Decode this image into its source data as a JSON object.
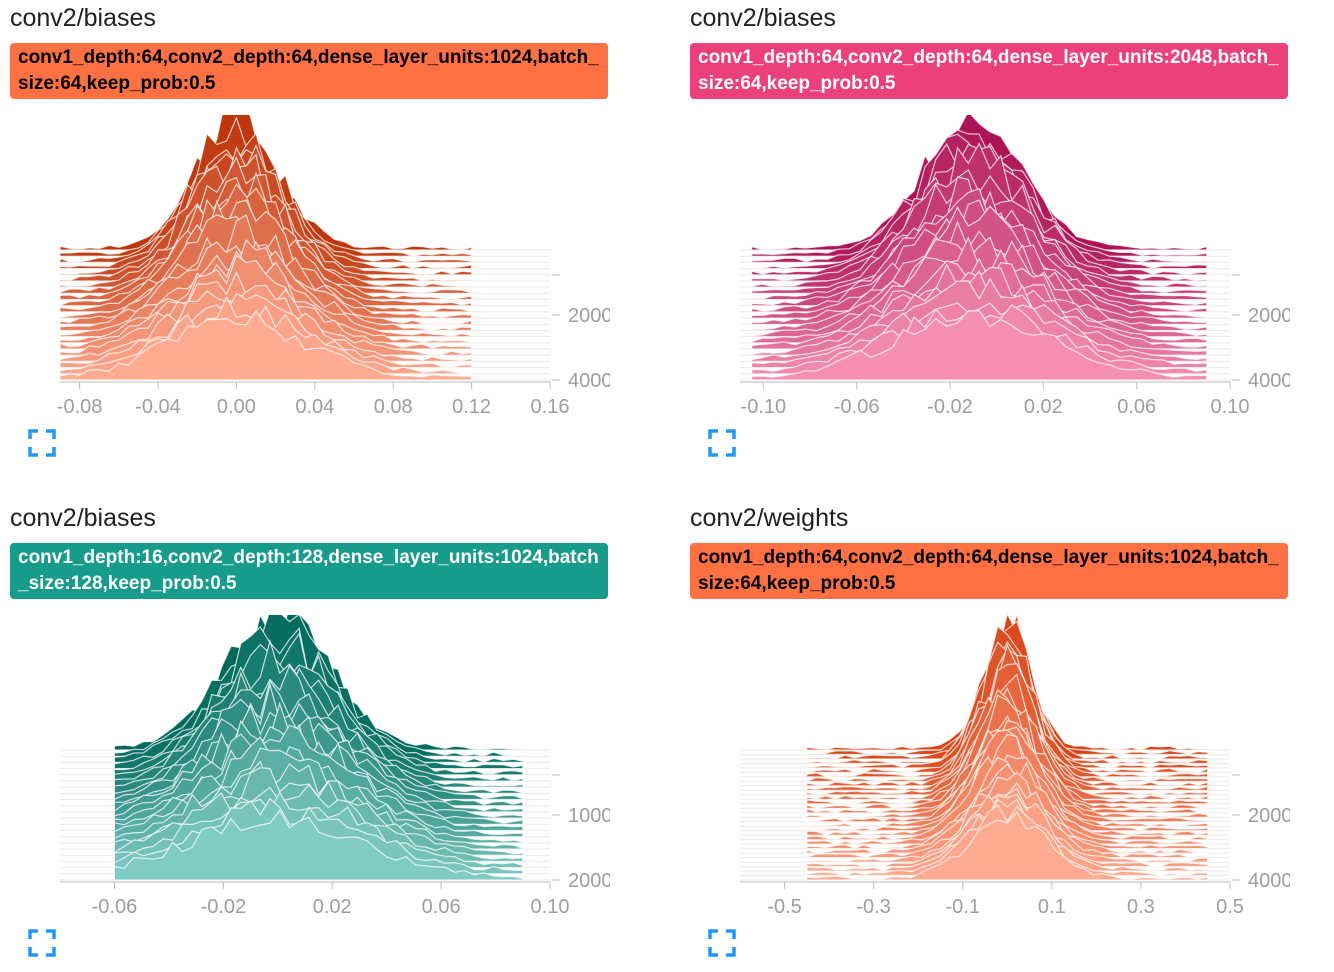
{
  "cards": [
    {
      "title": "conv2/biases",
      "run_label": "conv1_depth:64,conv2_depth:64,dense_layer_units:1024,batch_size:64,keep_prob:0.5",
      "run_color": "#ff7043",
      "run_text_color": "#000000",
      "expand_icon": "fullscreen-icon",
      "chart_data": {
        "type": "area",
        "variant": "histogram-offset",
        "x_ticks": [
          -0.08,
          -0.04,
          0.0,
          0.04,
          0.08,
          0.12,
          0.16
        ],
        "x_tick_labels": [
          "-0.08",
          "-0.04",
          "0.00",
          "0.04",
          "0.08",
          "0.12",
          "0.16"
        ],
        "xlim": [
          -0.09,
          0.16
        ],
        "y_ticks": [
          2000,
          4000
        ],
        "y_tick_labels": [
          "2000",
          "4000"
        ],
        "steps": [
          0,
          4000
        ],
        "n_slices": 22,
        "peak": 0.0,
        "spread": 0.028,
        "data_range": [
          -0.09,
          0.12
        ],
        "color_far": "#bf360c",
        "color_near": "#ffab91"
      }
    },
    {
      "title": "conv2/biases",
      "run_label": "conv1_depth:64,conv2_depth:64,dense_layer_units:2048,batch_size:64,keep_prob:0.5",
      "run_color": "#ec407a",
      "run_text_color": "#ffffff",
      "expand_icon": "fullscreen-icon",
      "chart_data": {
        "type": "area",
        "variant": "histogram-offset",
        "x_ticks": [
          -0.1,
          -0.06,
          -0.02,
          0.02,
          0.06,
          0.1
        ],
        "x_tick_labels": [
          "-0.10",
          "-0.06",
          "-0.02",
          "0.02",
          "0.06",
          "0.10"
        ],
        "xlim": [
          -0.11,
          0.1
        ],
        "y_ticks": [
          2000,
          4000
        ],
        "y_tick_labels": [
          "2000",
          "4000"
        ],
        "steps": [
          0,
          4000
        ],
        "n_slices": 22,
        "peak": -0.01,
        "spread": 0.028,
        "data_range": [
          -0.105,
          0.09
        ],
        "color_far": "#ad1457",
        "color_near": "#f48fb1"
      }
    },
    {
      "title": "conv2/biases",
      "run_label": "conv1_depth:16,conv2_depth:128,dense_layer_units:1024,batch_size:128,keep_prob:0.5",
      "run_color": "#179c8b",
      "run_text_color": "#ffffff",
      "expand_icon": "fullscreen-icon",
      "chart_data": {
        "type": "area",
        "variant": "histogram-offset",
        "x_ticks": [
          -0.06,
          -0.02,
          0.02,
          0.06,
          0.1
        ],
        "x_tick_labels": [
          "-0.06",
          "-0.02",
          "0.02",
          "0.06",
          "0.10"
        ],
        "xlim": [
          -0.08,
          0.1
        ],
        "y_ticks": [
          1000,
          2000
        ],
        "y_tick_labels": [
          "1000",
          "2000"
        ],
        "steps": [
          0,
          2000
        ],
        "n_slices": 22,
        "peak": 0.0,
        "spread": 0.026,
        "data_range": [
          -0.06,
          0.09
        ],
        "color_far": "#00695c",
        "color_near": "#80cbc4"
      }
    },
    {
      "title": "conv2/weights",
      "run_label": "conv1_depth:64,conv2_depth:64,dense_layer_units:1024,batch_size:64,keep_prob:0.5",
      "run_color": "#ff7043",
      "run_text_color": "#000000",
      "expand_icon": "fullscreen-icon",
      "chart_data": {
        "type": "area",
        "variant": "histogram-offset",
        "x_ticks": [
          -0.5,
          -0.3,
          -0.1,
          0.1,
          0.3,
          0.5
        ],
        "x_tick_labels": [
          "-0.5",
          "-0.3",
          "-0.1",
          "0.1",
          "0.3",
          "0.5"
        ],
        "xlim": [
          -0.6,
          0.5
        ],
        "y_ticks": [
          2000,
          4000
        ],
        "y_tick_labels": [
          "2000",
          "4000"
        ],
        "steps": [
          0,
          4000
        ],
        "n_slices": 30,
        "peak": 0.0,
        "spread": 0.07,
        "data_range": [
          -0.45,
          0.45
        ],
        "color_far": "#d84315",
        "color_near": "#ffab91"
      }
    }
  ]
}
